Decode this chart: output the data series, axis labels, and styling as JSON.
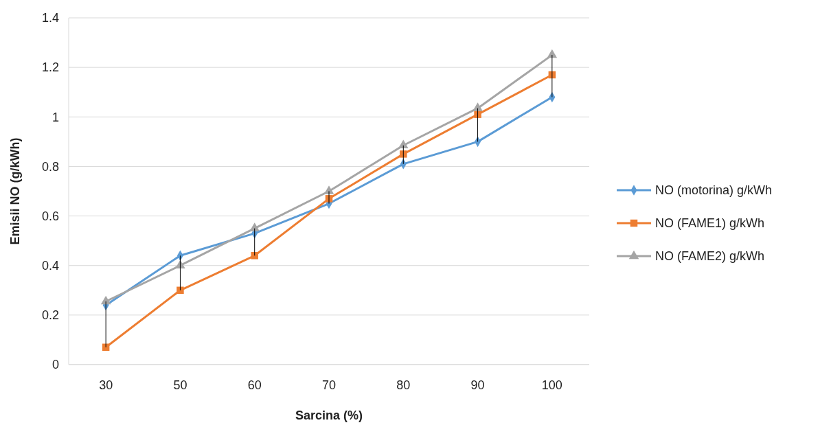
{
  "chart_data": {
    "type": "line",
    "xlabel": "Sarcina (%)",
    "ylabel": "Emisii NO (g/kWh)",
    "categories": [
      "30",
      "50",
      "60",
      "70",
      "80",
      "90",
      "100"
    ],
    "series": [
      {
        "name": "NO (motorina) g/kWh",
        "color": "#5b9bd5",
        "marker": "diamond",
        "values": [
          0.24,
          0.44,
          0.53,
          0.65,
          0.81,
          0.9,
          1.08
        ],
        "errors": [
          [
            0.07,
            0.255
          ],
          [
            0.3,
            0.44
          ],
          [
            0.44,
            0.55
          ],
          [
            0.65,
            0.7
          ],
          [
            0.81,
            0.885
          ],
          [
            0.9,
            1.035
          ],
          [
            1.08,
            1.25
          ]
        ]
      },
      {
        "name": "NO (FAME1) g/kWh",
        "color": "#ed7d31",
        "marker": "square",
        "values": [
          0.07,
          0.3,
          0.44,
          0.67,
          0.85,
          1.01,
          1.17
        ]
      },
      {
        "name": "NO (FAME2) g/kWh",
        "color": "#a5a5a5",
        "marker": "triangle",
        "values": [
          0.255,
          0.4,
          0.55,
          0.7,
          0.885,
          1.035,
          1.25
        ]
      }
    ],
    "ylim": [
      0,
      1.4
    ],
    "yticks": [
      0,
      {
        "value": 0.2,
        "label": "0.2"
      },
      {
        "value": 0.4,
        "label": "0.4"
      },
      {
        "value": 0.6,
        "label": "0.6"
      },
      {
        "value": 0.8,
        "label": "0.8"
      },
      1,
      {
        "value": 1.2,
        "label": "1.2"
      },
      {
        "value": 1.4,
        "label": "1.4"
      }
    ],
    "grid": "y",
    "legend": "right"
  }
}
